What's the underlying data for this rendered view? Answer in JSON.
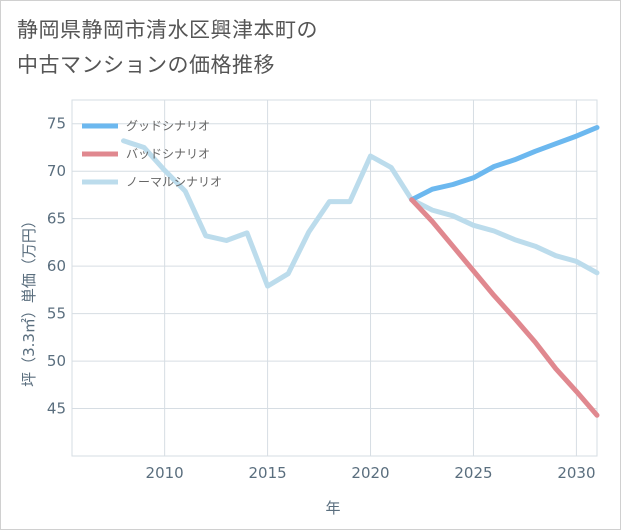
{
  "title_lines": [
    "静岡県静岡市清水区興津本町の",
    "中古マンションの価格推移"
  ],
  "chart_data": {
    "type": "line",
    "title": "静岡県静岡市清水区興津本町の中古マンションの価格推移",
    "xlabel": "年",
    "ylabel": "坪（3.3㎡）単価（万円）",
    "xlim": [
      2005.5,
      2031
    ],
    "ylim": [
      40,
      77.5
    ],
    "xticks": [
      2010,
      2015,
      2020,
      2025,
      2030
    ],
    "yticks": [
      45,
      50,
      55,
      60,
      65,
      70,
      75
    ],
    "legend_position": "top-left",
    "series": [
      {
        "name": "グッドシナリオ",
        "color": "#6cb8ef",
        "x": [
          2022,
          2023,
          2024,
          2025,
          2026,
          2027,
          2028,
          2029,
          2030,
          2031
        ],
        "values": [
          67.0,
          68.1,
          68.6,
          69.3,
          70.5,
          71.2,
          72.1,
          72.9,
          73.7,
          74.6
        ]
      },
      {
        "name": "バッドシナリオ",
        "color": "#e0888f",
        "x": [
          2022,
          2023,
          2024,
          2025,
          2026,
          2027,
          2028,
          2029,
          2030,
          2031
        ],
        "values": [
          67.0,
          64.7,
          62.1,
          59.5,
          56.9,
          54.5,
          52.0,
          49.2,
          46.8,
          44.3
        ]
      },
      {
        "name": "ノーマルシナリオ",
        "color": "#bcdcec",
        "x": [
          2008,
          2009,
          2010,
          2011,
          2012,
          2013,
          2014,
          2015,
          2016,
          2017,
          2018,
          2019,
          2020,
          2021,
          2022,
          2023,
          2024,
          2025,
          2026,
          2027,
          2028,
          2029,
          2030,
          2031
        ],
        "values": [
          73.2,
          72.5,
          70.1,
          67.9,
          63.2,
          62.7,
          63.5,
          57.9,
          59.2,
          63.6,
          66.8,
          66.8,
          71.6,
          70.4,
          67.0,
          65.9,
          65.3,
          64.3,
          63.7,
          62.8,
          62.1,
          61.1,
          60.5,
          59.3
        ]
      }
    ]
  }
}
